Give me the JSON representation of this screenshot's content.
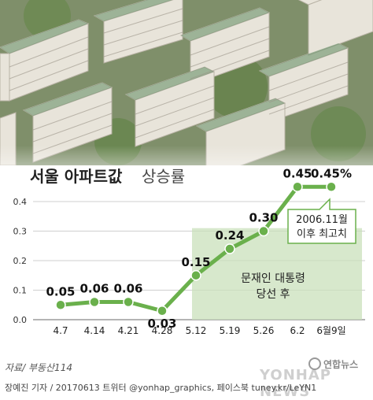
{
  "chart_data": {
    "type": "line",
    "title_main": "서울 아파트값",
    "title_sub": "상승률",
    "categories": [
      "4.7",
      "4.14",
      "4.21",
      "4.28",
      "5.12",
      "5.19",
      "5.26",
      "6.2",
      "6월9일"
    ],
    "values": [
      0.05,
      0.06,
      0.06,
      0.03,
      0.15,
      0.24,
      0.3,
      0.45,
      0.45
    ],
    "value_labels": [
      "0.05",
      "0.06",
      "0.06",
      "0.03",
      "0.15",
      "0.24",
      "0.30",
      "0.45",
      "0.45%"
    ],
    "yticks": [
      "0.0",
      "0.1",
      "0.2",
      "0.3",
      "0.4"
    ],
    "ytick_values": [
      0,
      0.1,
      0.2,
      0.3,
      0.4
    ],
    "ylim": [
      0,
      0.5
    ],
    "grid": true,
    "annotations": {
      "election_line1": "문재인 대통령",
      "election_line2": "당선 후",
      "callout_line1": "2006.11월",
      "callout_line2": "이후 최고치"
    },
    "line_color": "#6ab04c",
    "fill_color": "#c9e0bb"
  },
  "footer": {
    "source": "자료/ 부동산114",
    "credit": "장예진 기자 / 20170613 트위터 @yonhap_graphics, 페이스북 tuney.kr/LeYN1",
    "logo": "연합뉴스",
    "watermark": "YONHAP NEWS"
  }
}
